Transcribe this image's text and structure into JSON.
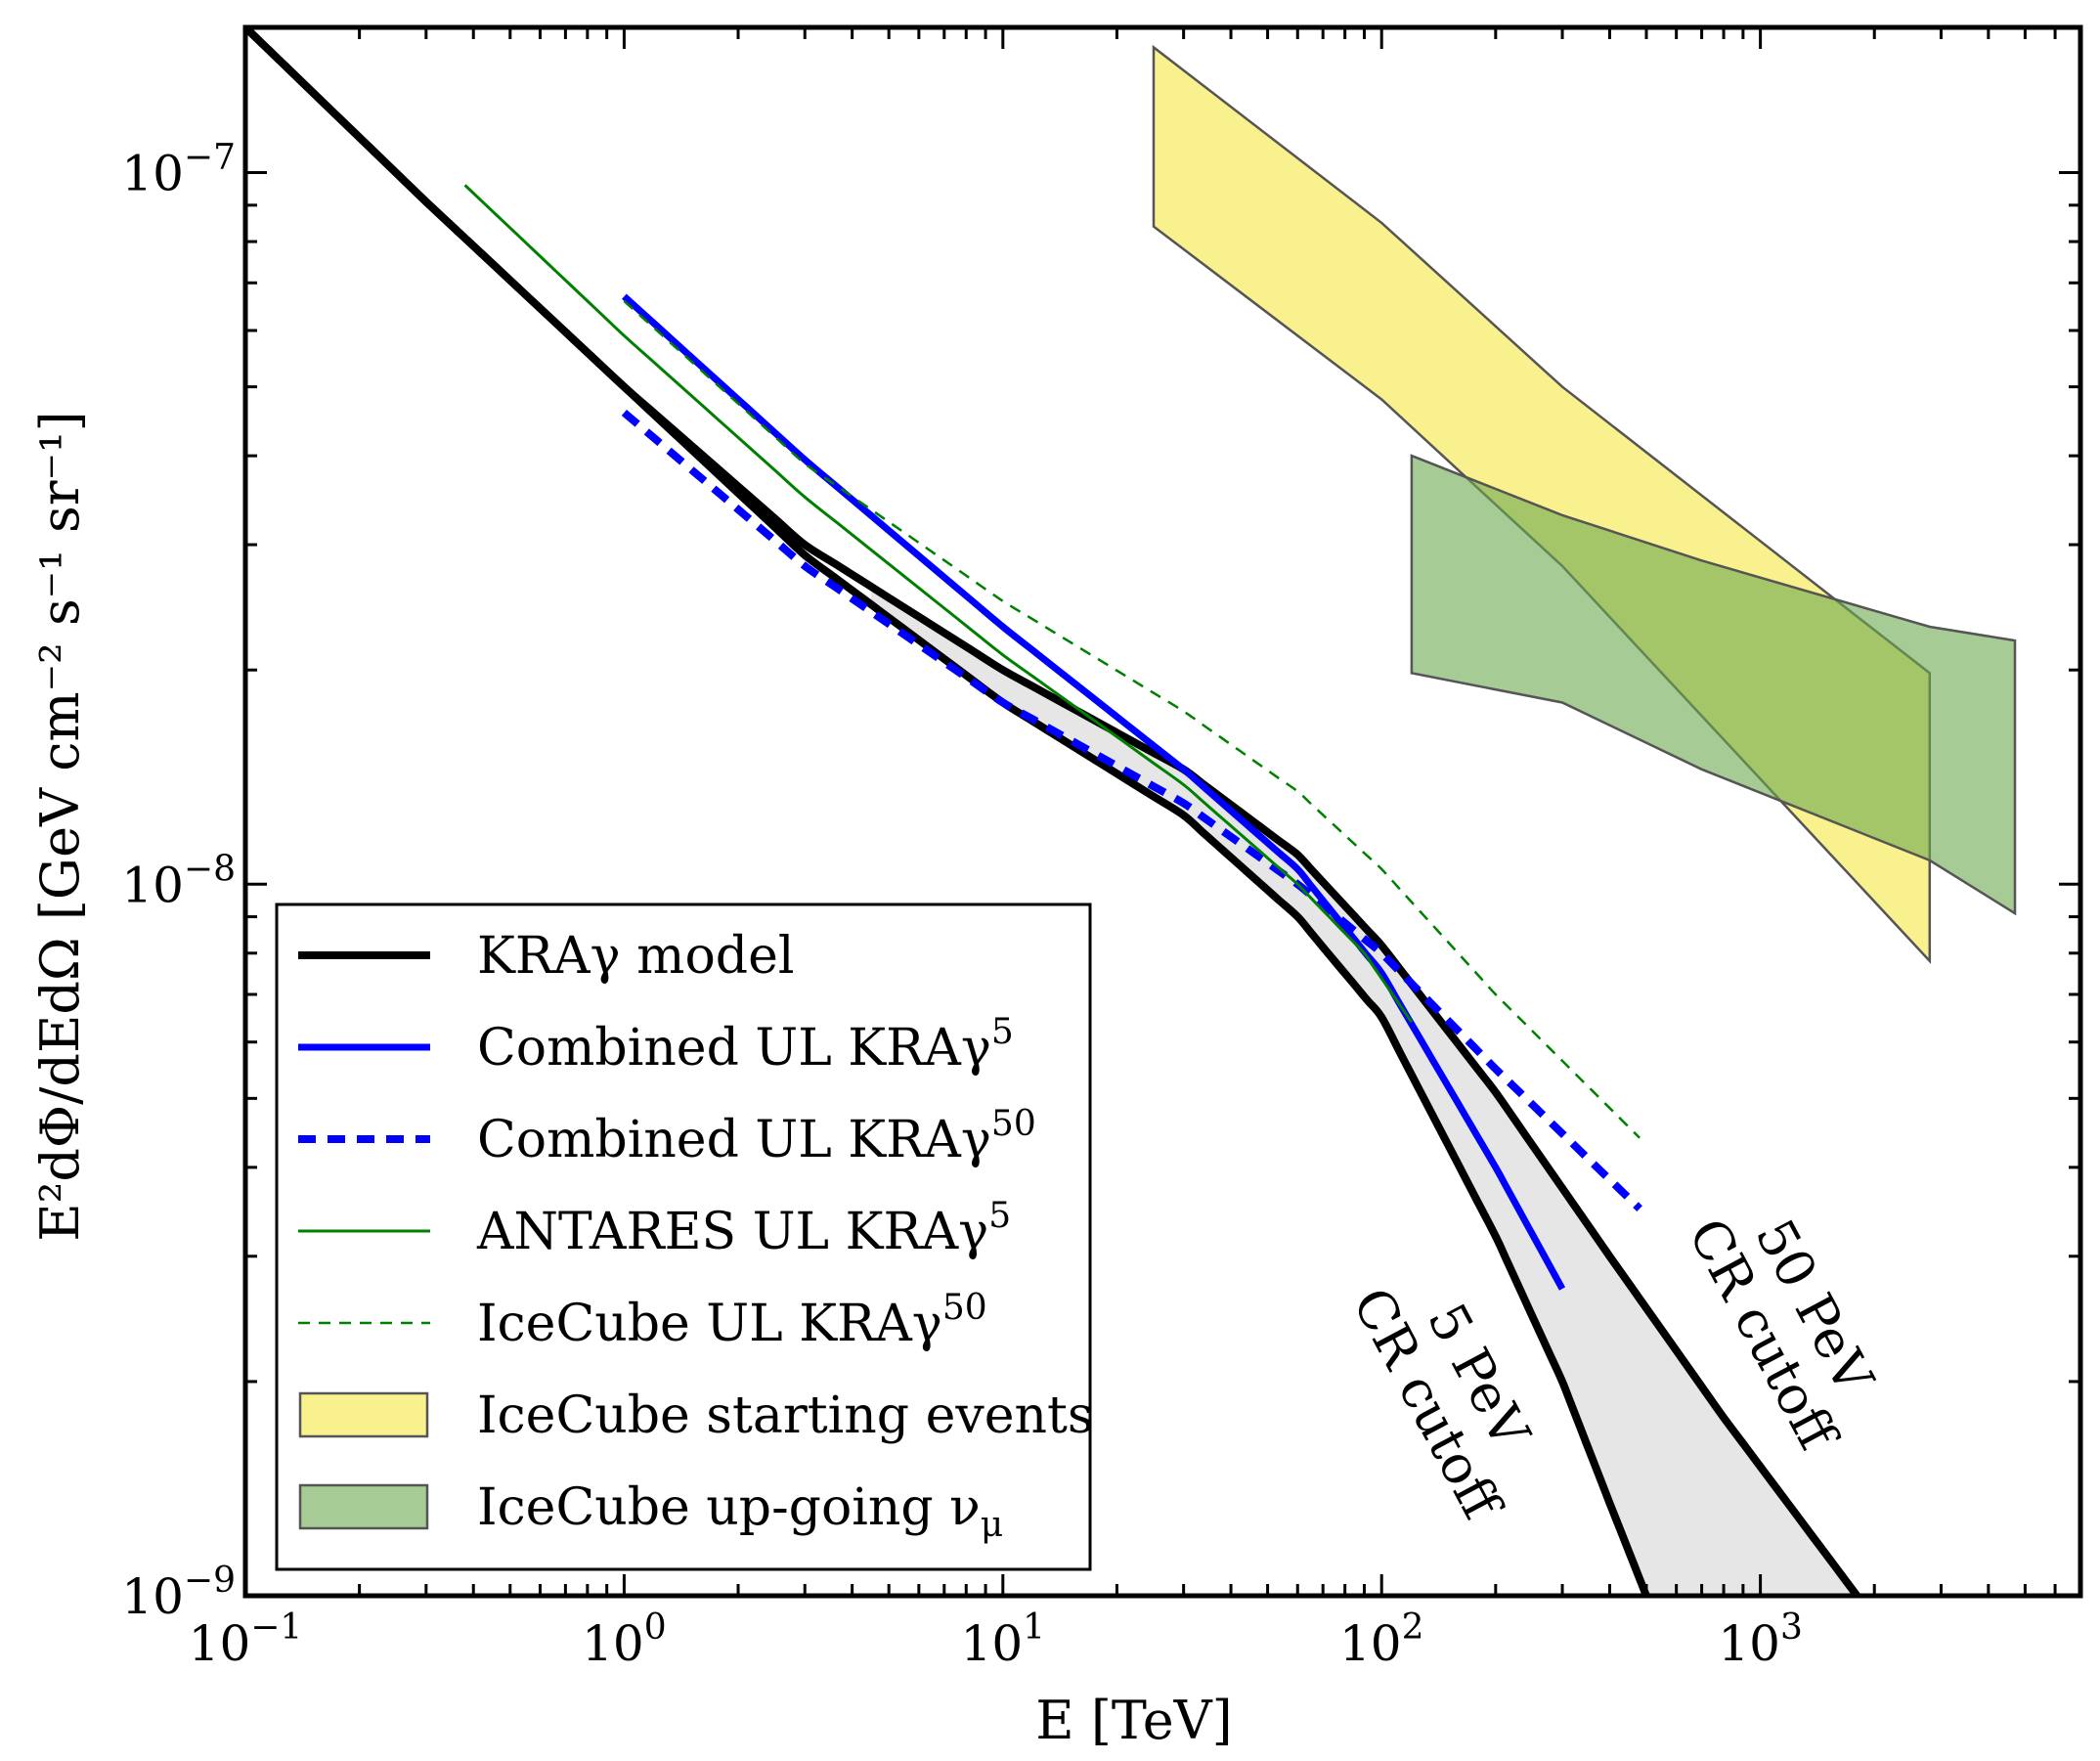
{
  "chart_data": {
    "type": "line",
    "xscale": "log",
    "yscale": "log",
    "xlim": [
      0.1,
      7000
    ],
    "ylim": [
      1e-09,
      1.6e-07
    ],
    "xlabel": "E [TeV]",
    "ylabel": "E²dΦ/dEdΩ [GeV cm⁻² s⁻¹ sr⁻¹]",
    "xticks": [
      {
        "value": 0.1,
        "base": "10",
        "exp": "−1"
      },
      {
        "value": 1,
        "base": "10",
        "exp": "0"
      },
      {
        "value": 10,
        "base": "10",
        "exp": "1"
      },
      {
        "value": 100,
        "base": "10",
        "exp": "2"
      },
      {
        "value": 1000,
        "base": "10",
        "exp": "3"
      }
    ],
    "yticks": [
      {
        "value": 1e-09,
        "base": "10",
        "exp": "−9"
      },
      {
        "value": 1e-08,
        "base": "10",
        "exp": "−8"
      },
      {
        "value": 1e-07,
        "base": "10",
        "exp": "−7"
      }
    ],
    "series": [
      {
        "name": "KRAγ model (50 PeV CR cutoff)",
        "style": "solid-thick",
        "color": "#000000",
        "x": [
          0.1,
          0.3,
          1,
          3,
          10,
          30,
          60,
          100,
          200,
          400,
          800,
          1800
        ],
        "y": [
          1.6e-07,
          9.1e-08,
          5e-08,
          3e-08,
          2e-08,
          1.45e-08,
          1.1e-08,
          8.2e-09,
          5.1e-09,
          3e-09,
          1.78e-09,
          1e-09
        ]
      },
      {
        "name": "KRAγ model (5 PeV CR cutoff)",
        "style": "solid-thick",
        "color": "#000000",
        "x": [
          0.1,
          0.3,
          1,
          3,
          10,
          30,
          60,
          100,
          200,
          300,
          400,
          500
        ],
        "y": [
          1.6e-07,
          9.1e-08,
          5e-08,
          2.9e-08,
          1.8e-08,
          1.25e-08,
          9e-09,
          6.5e-09,
          3.2e-09,
          2e-09,
          1.35e-09,
          1e-09
        ]
      },
      {
        "name": "Combined UL KRAγ5",
        "style": "solid",
        "color": "#0000ff",
        "x": [
          1,
          3,
          10,
          30,
          60,
          100,
          200,
          300
        ],
        "y": [
          6.7e-08,
          3.95e-08,
          2.3e-08,
          1.45e-08,
          1.05e-08,
          7.5e-09,
          4e-09,
          2.7e-09
        ]
      },
      {
        "name": "Combined UL KRAγ50",
        "style": "dashed",
        "color": "#0000ff",
        "x": [
          1,
          3,
          10,
          30,
          60,
          100,
          200,
          480
        ],
        "y": [
          4.6e-08,
          2.8e-08,
          1.8e-08,
          1.3e-08,
          1e-08,
          8e-09,
          5.5e-09,
          3.5e-09
        ]
      },
      {
        "name": "ANTARES UL KRAγ5",
        "style": "solid-thin",
        "color": "#008000",
        "x": [
          0.38,
          1,
          3,
          10,
          30,
          60,
          90,
          120
        ],
        "y": [
          9.6e-08,
          5.9e-08,
          3.5e-08,
          2.1e-08,
          1.38e-08,
          1e-08,
          8e-09,
          6.4e-09
        ]
      },
      {
        "name": "IceCube UL KRAγ50",
        "style": "dashed-thin",
        "color": "#008000",
        "x": [
          1,
          3,
          10,
          30,
          60,
          100,
          200,
          480
        ],
        "y": [
          6.6e-08,
          3.9e-08,
          2.5e-08,
          1.75e-08,
          1.35e-08,
          1.05e-08,
          7e-09,
          4.4e-09
        ]
      }
    ],
    "bands": [
      {
        "name": "IceCube starting events",
        "color": "#f5e642",
        "x": [
          25,
          100,
          300,
          2800
        ],
        "lower": [
          8.4e-08,
          4.8e-08,
          2.8e-08,
          7.8e-09
        ],
        "upper": [
          1.5e-07,
          8.5e-08,
          5e-08,
          1.98e-08
        ]
      },
      {
        "name": "IceCube up-going νμ",
        "color": "#6aa84f",
        "x": [
          120,
          300,
          700,
          2800,
          4700
        ],
        "lower": [
          1.98e-08,
          1.8e-08,
          1.45e-08,
          1.08e-08,
          9.1e-09
        ],
        "upper": [
          4e-08,
          3.3e-08,
          2.85e-08,
          2.3e-08,
          2.2e-08
        ]
      }
    ],
    "annotations": [
      {
        "line1": "50 PeV",
        "line2": "CR cutoff"
      },
      {
        "line1": "5 PeV",
        "line2": "CR cutoff"
      }
    ],
    "legend": {
      "position": "lower-left",
      "entries": [
        {
          "main": "KRAγ model",
          "sup": "",
          "tail": "",
          "style": "solid-thick",
          "color": "#000000"
        },
        {
          "main": "Combined UL KRAγ",
          "sup": "5",
          "tail": "",
          "style": "solid",
          "color": "#0000ff"
        },
        {
          "main": "Combined UL KRAγ",
          "sup": "50",
          "tail": "",
          "style": "dashed",
          "color": "#0000ff"
        },
        {
          "main": "ANTARES UL KRAγ",
          "sup": "5",
          "tail": "",
          "style": "solid-thin",
          "color": "#008000"
        },
        {
          "main": "IceCube UL KRAγ",
          "sup": "50",
          "tail": "",
          "style": "dashed-thin",
          "color": "#008000"
        },
        {
          "main": "IceCube starting events",
          "sup": "",
          "tail": "",
          "style": "patch",
          "color": "#f5e642"
        },
        {
          "main": "IceCube up-going ν",
          "sup": "",
          "tail": "μ",
          "style": "patch",
          "color": "#6aa84f"
        }
      ]
    }
  }
}
